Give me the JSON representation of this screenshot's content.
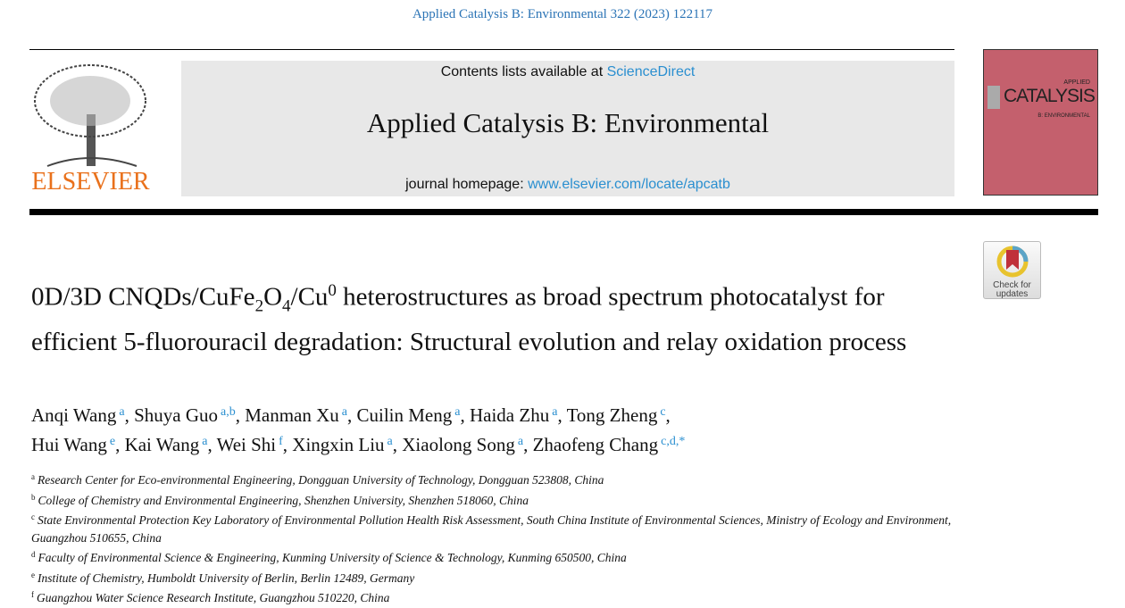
{
  "citation": "Applied Catalysis B: Environmental 322 (2023) 122117",
  "masthead": {
    "publisher_logo": "ELSEVIER",
    "contents_prefix": "Contents lists available at ",
    "contents_link": "ScienceDirect",
    "journal_title": "Applied Catalysis B: Environmental",
    "homepage_prefix": "journal homepage: ",
    "homepage_link": "www.elsevier.com/locate/apcatb"
  },
  "cover": {
    "line1": "APPLIED",
    "line2": "CATALYSIS",
    "line3": "B: ENVIRONMENTAL",
    "color": "#c4606d"
  },
  "check_updates": {
    "line1": "Check for",
    "line2": "updates"
  },
  "title": {
    "p1": "0D/3D CNQDs/CuFe",
    "sub1": "2",
    "p2": "O",
    "sub2": "4",
    "p3": "/Cu",
    "sup1": "0",
    "p4": " heterostructures as broad spectrum photocatalyst for efficient 5-fluorouracil degradation: Structural evolution and relay oxidation process"
  },
  "authors": [
    {
      "name": "Anqi Wang",
      "sup": "a"
    },
    {
      "name": "Shuya Guo",
      "sup": "a,b"
    },
    {
      "name": "Manman Xu",
      "sup": "a"
    },
    {
      "name": "Cuilin Meng",
      "sup": "a"
    },
    {
      "name": "Haida Zhu",
      "sup": "a"
    },
    {
      "name": "Tong Zheng",
      "sup": "c"
    },
    {
      "name": "Hui Wang",
      "sup": "e"
    },
    {
      "name": "Kai Wang",
      "sup": "a"
    },
    {
      "name": "Wei Shi",
      "sup": "f"
    },
    {
      "name": "Xingxin Liu",
      "sup": "a"
    },
    {
      "name": "Xiaolong Song",
      "sup": "a"
    },
    {
      "name": "Zhaofeng Chang",
      "sup": "c,d,*"
    }
  ],
  "affiliations": [
    {
      "key": "a",
      "text": "Research Center for Eco-environmental Engineering, Dongguan University of Technology, Dongguan 523808, China"
    },
    {
      "key": "b",
      "text": "College of Chemistry and Environmental Engineering, Shenzhen University, Shenzhen 518060, China"
    },
    {
      "key": "c",
      "text": "State Environmental Protection Key Laboratory of Environmental Pollution Health Risk Assessment, South China Institute of Environmental Sciences, Ministry of Ecology and Environment, Guangzhou 510655, China"
    },
    {
      "key": "d",
      "text": "Faculty of Environmental Science & Engineering, Kunming University of Science & Technology, Kunming 650500, China"
    },
    {
      "key": "e",
      "text": "Institute of Chemistry, Humboldt University of Berlin, Berlin 12489, Germany"
    },
    {
      "key": "f",
      "text": "Guangzhou Water Science Research Institute, Guangzhou 510220, China"
    }
  ]
}
